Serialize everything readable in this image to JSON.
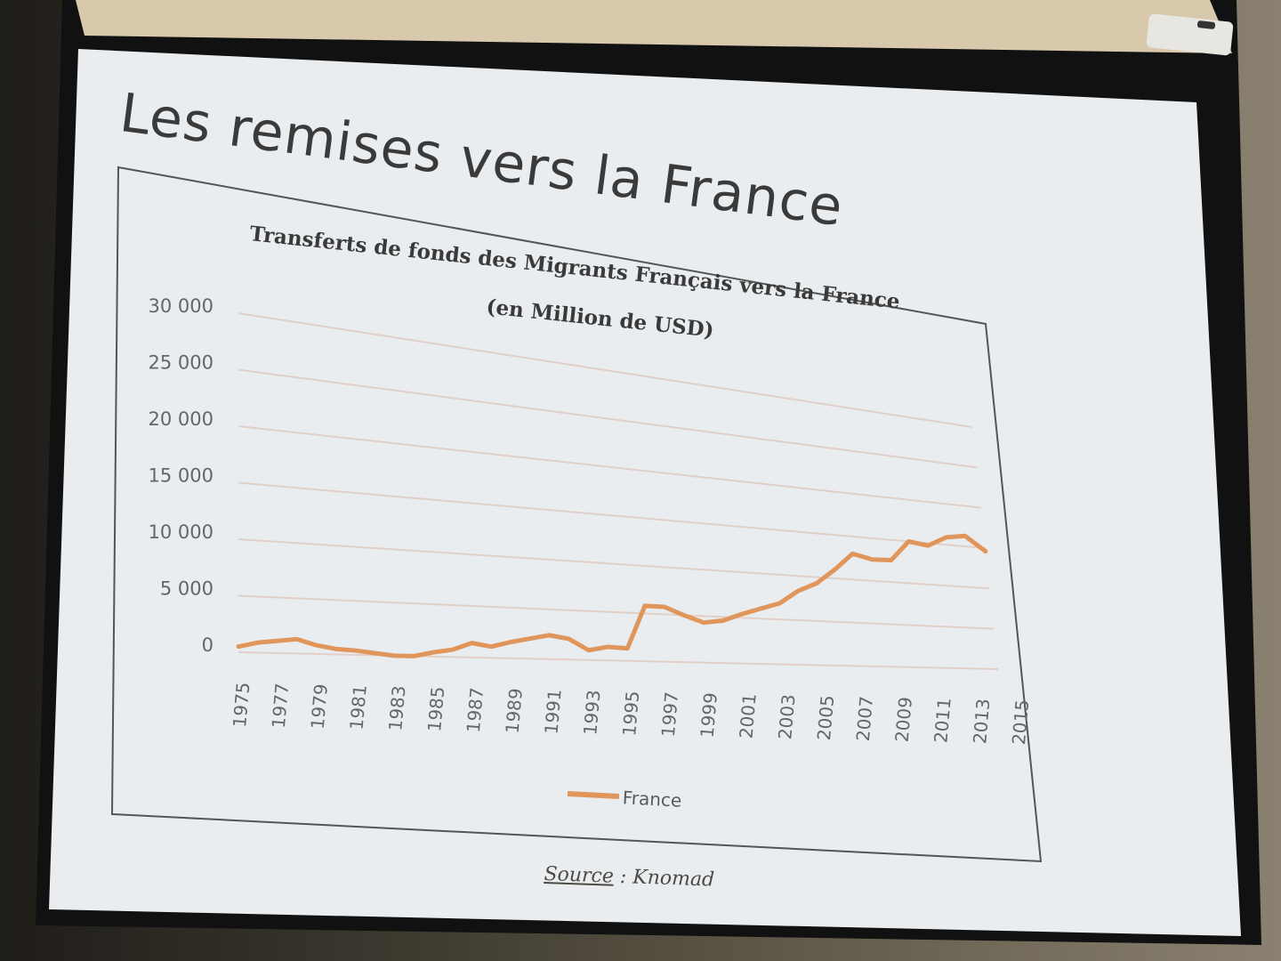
{
  "slide": {
    "title": "Les remises vers la France",
    "source_label": "Source",
    "source_separator": " : ",
    "source_value": "Knomad"
  },
  "chart_data": {
    "type": "line",
    "title": "Transferts de fonds des Migrants Français vers la France",
    "subtitle": "(en Million de USD)",
    "xlabel": "",
    "ylabel": "",
    "ylim": [
      0,
      30000
    ],
    "yticks": [
      "30 000",
      "25 000",
      "20 000",
      "15 000",
      "10 000",
      "5 000",
      "0"
    ],
    "xticks": [
      "1975",
      "1977",
      "1979",
      "1981",
      "1983",
      "1985",
      "1987",
      "1989",
      "1991",
      "1993",
      "1995",
      "1997",
      "1999",
      "2001",
      "2003",
      "2005",
      "2007",
      "2009",
      "2011",
      "2013",
      "2015"
    ],
    "grid": true,
    "legend": "bottom",
    "color": "#e0955a",
    "series": [
      {
        "name": "France",
        "x": [
          1975,
          1976,
          1977,
          1978,
          1979,
          1980,
          1981,
          1982,
          1983,
          1984,
          1985,
          1986,
          1987,
          1988,
          1989,
          1990,
          1991,
          1992,
          1993,
          1994,
          1995,
          1996,
          1997,
          1998,
          1999,
          2000,
          2001,
          2002,
          2003,
          2004,
          2005,
          2006,
          2007,
          2008,
          2009,
          2010,
          2011,
          2012,
          2013,
          2014
        ],
        "values": [
          500,
          900,
          1100,
          1300,
          800,
          500,
          400,
          200,
          0,
          0,
          400,
          700,
          1400,
          1100,
          1600,
          2000,
          2400,
          2100,
          1000,
          1400,
          1300,
          5800,
          5800,
          5000,
          4300,
          4600,
          5400,
          6100,
          6800,
          8300,
          9300,
          11000,
          13000,
          12500,
          12600,
          15000,
          14700,
          15900,
          16300,
          14600
        ]
      }
    ]
  }
}
